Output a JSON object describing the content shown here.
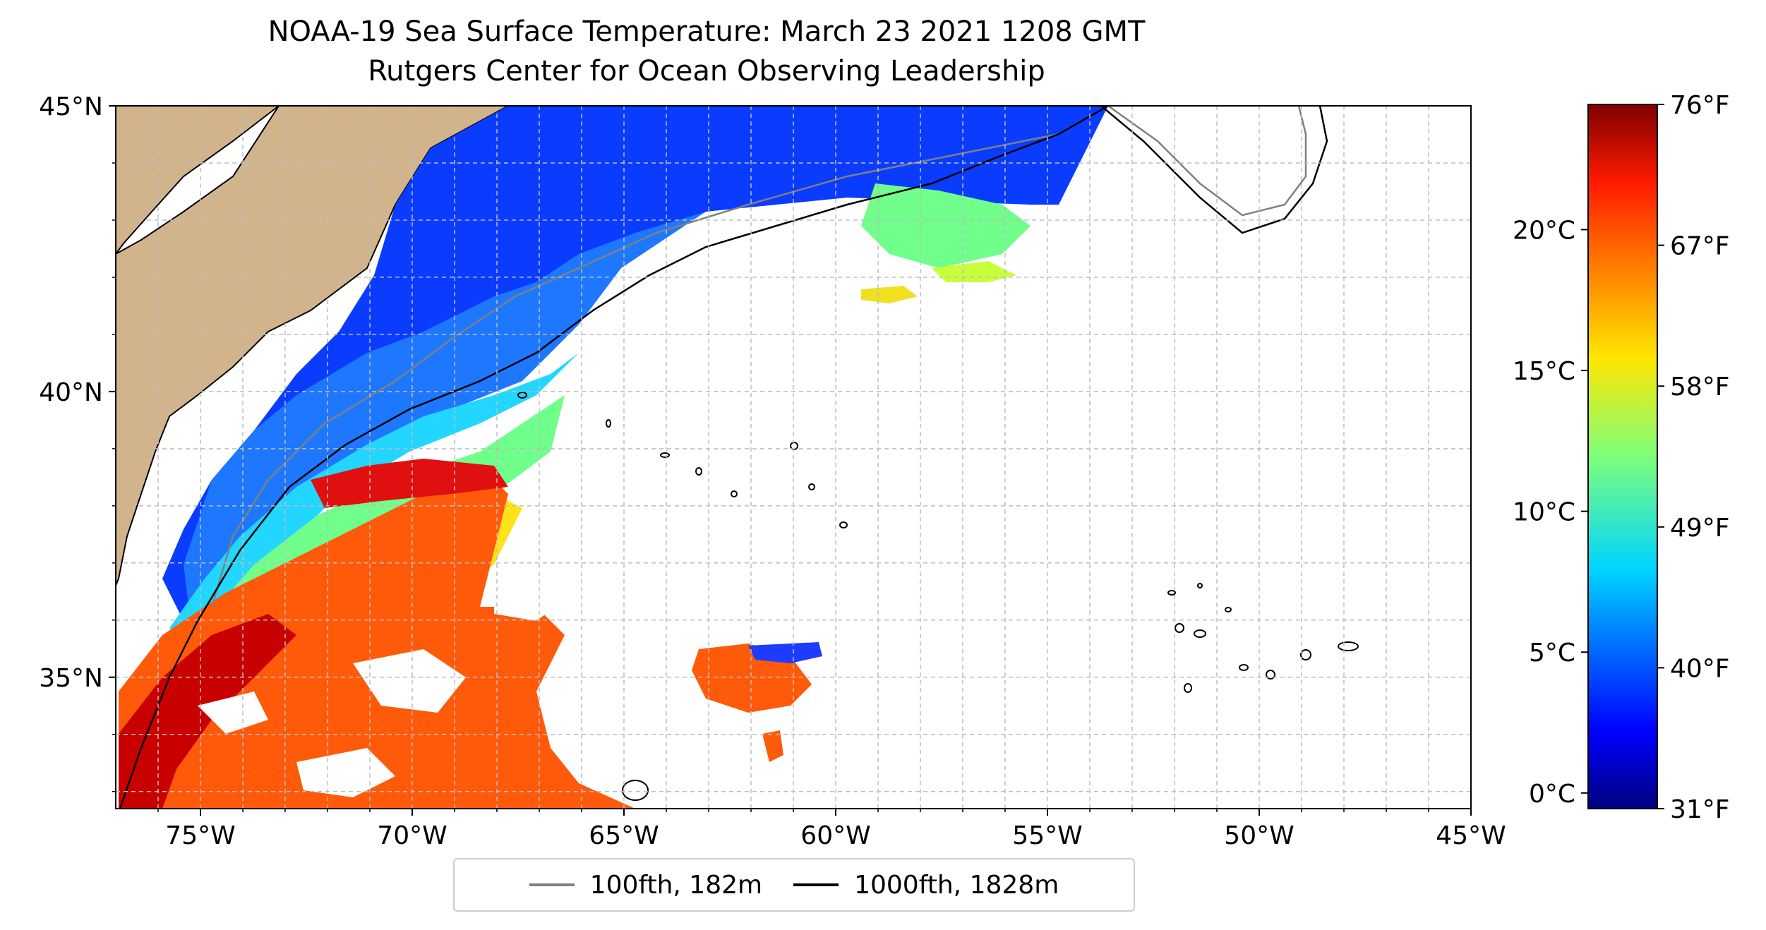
{
  "title": "NOAA-19 Sea Surface Temperature: March 23 2021 1208 GMT",
  "subtitle": "Rutgers Center for Ocean Observing Leadership",
  "map": {
    "lon_range": [
      -77,
      -45
    ],
    "lat_range": [
      32.7,
      45
    ],
    "lon_ticks": [
      "75°W",
      "70°W",
      "65°W",
      "60°W",
      "55°W",
      "50°W",
      "45°W"
    ],
    "lat_ticks": [
      "45°N",
      "40°N",
      "35°N"
    ],
    "land_color": "#d2b48c",
    "gridlines": "dashed grey",
    "colormap": "jet"
  },
  "legend": {
    "items": [
      {
        "label": "100fth, 182m",
        "color": "#808080"
      },
      {
        "label": "1000fth, 1828m",
        "color": "#000000"
      }
    ]
  },
  "colorbar": {
    "celsius_ticks": [
      "20°C",
      "15°C",
      "10°C",
      "5°C",
      "0°C"
    ],
    "fahrenheit_ticks": [
      "76°F",
      "67°F",
      "58°F",
      "49°F",
      "40°F",
      "31°F"
    ],
    "range_f": [
      31,
      76
    ]
  }
}
